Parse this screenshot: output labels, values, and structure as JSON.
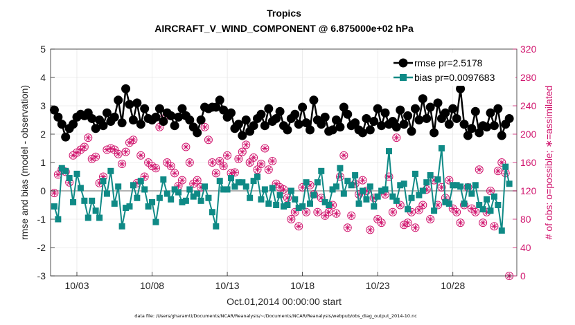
{
  "chart_data": {
    "type": "line",
    "title": "Tropics",
    "subtitle": "AIRCRAFT_V_WIND_COMPONENT @ 6.875000e+02 hPa",
    "xlabel": "Oct.01,2014 00:00:00 start",
    "ylabel_left": "rmse and bias (model - observation)",
    "ylabel_right": "# of obs: o=possible; ∗=assimilated",
    "footer": "data file: /Users/gharamti/Documents/NCAR/Reanalysis/~/Documents/NCAR/Reanalysis/webpub/obs_diag_output_2014-10.nc",
    "xlim": [
      1.25,
      32.25
    ],
    "ylim_left": [
      -3,
      5
    ],
    "ylim_right": [
      0,
      320
    ],
    "yticks_left": [
      "-3",
      "-2",
      "-1",
      "0",
      "1",
      "2",
      "3",
      "4",
      "5"
    ],
    "yticks_right": [
      "0",
      "40",
      "80",
      "120",
      "160",
      "200",
      "240",
      "280",
      "320"
    ],
    "xtick_days": [
      3,
      8,
      13,
      18,
      23,
      28
    ],
    "xticks": [
      "10/03",
      "10/08",
      "10/13",
      "10/18",
      "10/23",
      "10/28"
    ],
    "legend": [
      {
        "label": "rmse pr=2.5178",
        "color": "#000000"
      },
      {
        "label": "bias pr=0.0097683",
        "color": "#0f8a86"
      }
    ],
    "colors": {
      "rmse": "#000000",
      "bias": "#0f8a86",
      "obs": "#d1176f",
      "zero": "#b3b3b3"
    },
    "x_start_day": 1.5,
    "x_step_days": 0.25,
    "series": [
      {
        "name": "rmse",
        "axis": "left",
        "values": [
          2.85,
          2.6,
          2.35,
          1.9,
          2.2,
          2.35,
          2.6,
          2.7,
          2.65,
          2.75,
          2.55,
          2.2,
          2.5,
          2.3,
          2.75,
          2.45,
          2.6,
          3.2,
          2.4,
          3.6,
          3.05,
          2.5,
          3.1,
          2.35,
          2.9,
          2.55,
          2.5,
          2.6,
          2.9,
          2.45,
          2.75,
          2.65,
          2.3,
          2.6,
          2.9,
          2.65,
          2.5,
          2.25,
          2.05,
          2.5,
          2.95,
          2.9,
          2.95,
          2.95,
          3.2,
          2.85,
          2.6,
          2.75,
          2.2,
          2.35,
          1.95,
          2.5,
          2.1,
          2.3,
          2.55,
          2.7,
          2.3,
          2.9,
          2.45,
          2.55,
          2.8,
          2.3,
          2.15,
          2.55,
          2.7,
          2.35,
          2.95,
          2.4,
          2.15,
          3.2,
          2.5,
          2.35,
          2.6,
          2.1,
          2.15,
          2.5,
          2.25,
          2.95,
          2.7,
          2.3,
          2.4,
          2.15,
          2.05,
          2.55,
          2.15,
          2.45,
          2.9,
          2.3,
          2.75,
          2.35,
          2.45,
          2.25,
          2.85,
          2.35,
          2.65,
          2.1,
          2.9,
          2.5,
          3.25,
          2.55,
          2.95,
          2.05,
          3.1,
          2.55,
          2.75,
          2.35,
          2.9,
          2.55,
          3.6,
          2.35,
          1.95,
          2.2,
          2.8,
          2.05,
          2.3,
          2.25,
          2.75,
          2.3,
          2.9,
          1.95,
          2.35,
          2.55
        ]
      },
      {
        "name": "bias",
        "axis": "left",
        "values": [
          -0.55,
          -1.0,
          0.8,
          0.7,
          0.45,
          -0.4,
          0.6,
          0.1,
          -0.35,
          -0.95,
          -0.35,
          -0.7,
          -0.95,
          0.35,
          -0.1,
          0.7,
          -0.45,
          0.15,
          -1.25,
          -0.6,
          -0.55,
          0.2,
          -0.25,
          0.35,
          0.05,
          -0.55,
          -0.4,
          -1.1,
          -0.25,
          0.4,
          -0.1,
          -0.3,
          0.05,
          -0.05,
          -0.4,
          -0.35,
          0.05,
          -0.2,
          -0.1,
          -0.35,
          0.15,
          -0.25,
          -0.75,
          -1.25,
          0.35,
          0.05,
          0.05,
          0.45,
          0.15,
          0.3,
          0.3,
          0.15,
          -0.25,
          0.35,
          0.5,
          -0.3,
          0.05,
          -0.45,
          0.1,
          -0.5,
          -0.15,
          -0.55,
          -0.5,
          0.0,
          -0.3,
          -0.6,
          -0.55,
          0.3,
          -0.45,
          -0.15,
          0.3,
          0.7,
          -0.4,
          -0.5,
          0.05,
          0.15,
          0.8,
          -0.1,
          0.35,
          0.2,
          0.55,
          -0.45,
          0.0,
          -0.3,
          0.15,
          -0.55,
          -0.2,
          0.0,
          0.05,
          1.4,
          -0.2,
          -0.35,
          0.2,
          0.25,
          -0.65,
          -0.25,
          0.6,
          -0.15,
          0.0,
          0.3,
          0.55,
          -0.7,
          0.4,
          1.5,
          -0.4,
          -0.45,
          0.2,
          0.2,
          0.15,
          -0.45,
          0.15,
          -0.1,
          0.2,
          -0.5,
          -0.65,
          -0.3,
          -0.7,
          -0.2,
          -0.5,
          -1.4,
          0.85,
          0.25
        ]
      },
      {
        "name": "obs_possible",
        "axis": "right",
        "values": [
          117,
          143,
          150,
          147,
          132,
          170,
          174,
          178,
          182,
          195,
          165,
          168,
          131,
          140,
          178,
          180,
          178,
          172,
          158,
          175,
          188,
          192,
          131,
          170,
          140,
          160,
          155,
          152,
          210,
          222,
          160,
          155,
          145,
          127,
          135,
          182,
          160,
          130,
          135,
          125,
          210,
          192,
          160,
          145,
          162,
          155,
          170,
          145,
          146,
          165,
          175,
          185,
          160,
          167,
          150,
          158,
          180,
          150,
          162,
          130,
          125,
          122,
          110,
          80,
          90,
          70,
          125,
          90,
          128,
          115,
          90,
          110,
          85,
          90,
          100,
          88,
          140,
          170,
          68,
          85,
          130,
          115,
          135,
          120,
          65,
          110,
          80,
          75,
          115,
          140,
          90,
          195,
          100,
          72,
          75,
          90,
          68,
          93,
          100,
          122,
          80,
          135,
          100,
          125,
          110,
          135,
          95,
          90,
          75,
          100,
          125,
          95,
          90,
          150,
          75,
          90,
          120,
          70,
          148,
          160,
          145,
          0
        ]
      },
      {
        "name": "obs_assimilated",
        "axis": "right",
        "values": [
          117,
          143,
          150,
          147,
          132,
          170,
          174,
          178,
          182,
          195,
          165,
          168,
          131,
          140,
          178,
          180,
          178,
          172,
          158,
          175,
          188,
          192,
          131,
          170,
          140,
          160,
          155,
          152,
          210,
          222,
          160,
          155,
          145,
          127,
          135,
          182,
          160,
          130,
          135,
          125,
          210,
          192,
          160,
          145,
          162,
          155,
          170,
          145,
          146,
          165,
          175,
          185,
          160,
          167,
          150,
          158,
          180,
          150,
          162,
          130,
          125,
          122,
          110,
          80,
          90,
          70,
          125,
          90,
          128,
          115,
          90,
          110,
          85,
          90,
          100,
          88,
          140,
          170,
          68,
          85,
          130,
          115,
          135,
          120,
          65,
          110,
          80,
          75,
          115,
          140,
          90,
          195,
          100,
          72,
          75,
          90,
          68,
          93,
          100,
          122,
          80,
          135,
          100,
          125,
          110,
          135,
          95,
          90,
          75,
          100,
          125,
          95,
          90,
          150,
          75,
          90,
          120,
          70,
          148,
          160,
          145,
          0
        ]
      }
    ]
  }
}
